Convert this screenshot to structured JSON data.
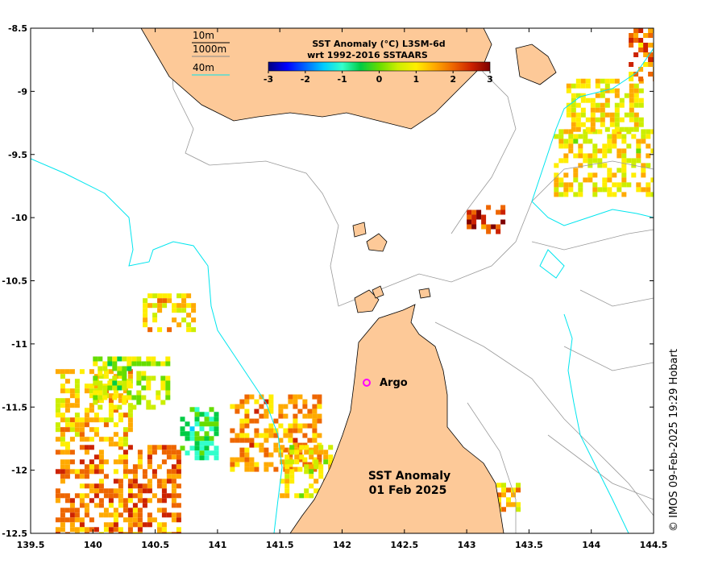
{
  "chart_data": {
    "type": "heatmap",
    "title_line1": "SST Anomaly (°C) L3SM-6d",
    "title_line2": "wrt 1992-2016 SSTAARS",
    "colorbar": {
      "min": -3,
      "max": 3,
      "ticks": [
        "-3",
        "-2",
        "-1",
        "0",
        "1",
        "2",
        "3"
      ],
      "colors": [
        "#00007f",
        "#0000ff",
        "#0066ff",
        "#00ccff",
        "#33ffcc",
        "#00cc44",
        "#66dd00",
        "#ccee00",
        "#ffee00",
        "#ffaa00",
        "#ee6600",
        "#cc2200",
        "#7f0000"
      ]
    },
    "x_axis": {
      "range": [
        139.5,
        144.5
      ],
      "ticks": [
        "139.5",
        "140",
        "140.5",
        "141",
        "141.5",
        "142",
        "142.5",
        "143",
        "143.5",
        "144",
        "144.5"
      ]
    },
    "y_axis": {
      "range": [
        -12.5,
        -8.5
      ],
      "ticks": [
        "-8.5",
        "-9",
        "-9.5",
        "-10",
        "-10.5",
        "-11",
        "-11.5",
        "-12",
        "-12.5"
      ]
    },
    "depth_legend": [
      {
        "label": "10m",
        "color": "#000000"
      },
      {
        "label": "1000m",
        "color": "#888888"
      },
      {
        "label": "40m",
        "color": "#00e5ee"
      }
    ],
    "annotations": {
      "argo": {
        "label": "Argo",
        "lon": 142.2,
        "lat": -11.3,
        "color": "#ff00ff"
      },
      "main_line1": "SST Anomaly",
      "main_line2": "01 Feb 2025"
    },
    "credit": "© IMOS 09-Feb-2025 19:29 Hobart",
    "land_color": "#fdc998",
    "anomaly_patches": [
      {
        "lon": [
          139.7,
          140.7
        ],
        "lat": [
          -12.5,
          -11.8
        ],
        "value": 1.8
      },
      {
        "lon": [
          139.7,
          140.3
        ],
        "lat": [
          -11.8,
          -11.2
        ],
        "value": 1.2
      },
      {
        "lon": [
          140.0,
          140.6
        ],
        "lat": [
          -11.5,
          -11.1
        ],
        "value": 0.4
      },
      {
        "lon": [
          140.7,
          141.0
        ],
        "lat": [
          -11.9,
          -11.5
        ],
        "value": -0.6
      },
      {
        "lon": [
          141.1,
          141.8
        ],
        "lat": [
          -12.0,
          -11.4
        ],
        "value": 1.6
      },
      {
        "lon": [
          141.5,
          141.9
        ],
        "lat": [
          -12.2,
          -11.8
        ],
        "value": 0.9
      },
      {
        "lon": [
          140.4,
          140.8
        ],
        "lat": [
          -10.9,
          -10.6
        ],
        "value": 1.1
      },
      {
        "lon": [
          143.7,
          144.5
        ],
        "lat": [
          -9.8,
          -9.3
        ],
        "value": 0.9
      },
      {
        "lon": [
          143.8,
          144.4
        ],
        "lat": [
          -9.3,
          -8.9
        ],
        "value": 1.0
      },
      {
        "lon": [
          144.3,
          144.5
        ],
        "lat": [
          -8.9,
          -8.5
        ],
        "value": 1.8
      },
      {
        "lon": [
          143.0,
          143.3
        ],
        "lat": [
          -10.1,
          -9.9
        ],
        "value": 2.4
      },
      {
        "lon": [
          143.2,
          143.4
        ],
        "lat": [
          -12.3,
          -12.1
        ],
        "value": 1.2
      }
    ]
  }
}
